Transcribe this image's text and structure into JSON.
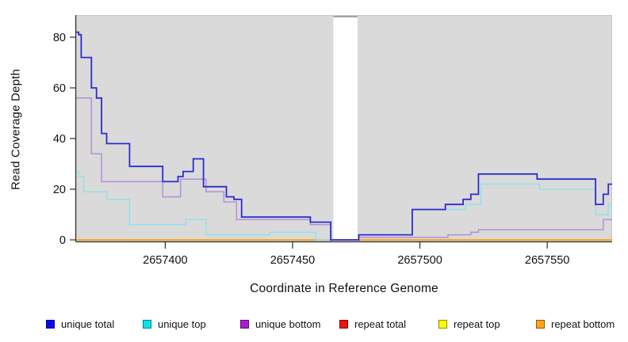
{
  "figure": {
    "x_axis_label": "Coordinate in Reference Genome",
    "y_axis_label": "Read Coverage Depth"
  },
  "legend": {
    "items": [
      {
        "label": "unique total",
        "color": "#0808EE"
      },
      {
        "label": "unique top",
        "color": "#00E6E6"
      },
      {
        "label": "unique bottom",
        "color": "#A21FD0"
      },
      {
        "label": "repeat total",
        "color": "#EE1111"
      },
      {
        "label": "repeat top",
        "color": "#FFFF00"
      },
      {
        "label": "repeat bottom",
        "color": "#FFA519"
      }
    ]
  },
  "chart_data": {
    "type": "line",
    "subtype": "step-coverage",
    "title": "",
    "xlabel": "Coordinate in Reference Genome",
    "ylabel": "Read Coverage Depth",
    "xlim": [
      2657365,
      2657575.5
    ],
    "ylim": [
      0,
      88
    ],
    "x_ticks": [
      2657400,
      2657450,
      2657500,
      2657550
    ],
    "y_ticks": [
      0,
      20,
      40,
      60,
      80
    ],
    "panel_background": "#DADADA",
    "panel_border": "#C6C6C6",
    "masked_region": {
      "x_start": 2657466,
      "x_end": 2657475.5,
      "fill": "#FFFFFF"
    },
    "grid": "off",
    "legend_position": "bottom",
    "series": [
      {
        "name": "repeat total",
        "line_color": "#E02020",
        "width": 1.2,
        "steps": [
          [
            2657365,
            0
          ]
        ]
      },
      {
        "name": "repeat top",
        "line_color": "#FFFF00",
        "width": 1.2,
        "steps": [
          [
            2657365,
            0
          ]
        ]
      },
      {
        "name": "repeat bottom",
        "line_color": "#FFA519",
        "width": 1.8,
        "steps": [
          [
            2657365,
            0
          ]
        ]
      },
      {
        "name": "unique top",
        "line_color": "#90E2E6",
        "width": 1.5,
        "steps": [
          [
            2657365,
            27
          ],
          [
            2657366,
            25
          ],
          [
            2657368,
            19
          ],
          [
            2657377,
            16
          ],
          [
            2657386,
            6
          ],
          [
            2657408,
            8
          ],
          [
            2657416,
            2
          ],
          [
            2657441,
            3
          ],
          [
            2657459,
            0
          ],
          [
            2657476,
            2
          ],
          [
            2657497,
            12
          ],
          [
            2657518,
            14
          ],
          [
            2657524,
            22
          ],
          [
            2657547,
            20
          ],
          [
            2657569,
            10
          ],
          [
            2657574,
            14
          ]
        ]
      },
      {
        "name": "unique bottom",
        "line_color": "#B48FDA",
        "width": 1.5,
        "steps": [
          [
            2657365,
            56
          ],
          [
            2657371,
            34
          ],
          [
            2657375,
            23
          ],
          [
            2657399,
            17
          ],
          [
            2657406,
            24
          ],
          [
            2657416,
            19
          ],
          [
            2657423,
            15
          ],
          [
            2657428,
            8
          ],
          [
            2657457,
            6
          ],
          [
            2657465,
            0
          ],
          [
            2657476,
            1
          ],
          [
            2657511,
            2
          ],
          [
            2657520,
            3
          ],
          [
            2657523,
            4
          ],
          [
            2657572,
            8
          ]
        ]
      },
      {
        "name": "unique total",
        "line_color": "#2C2CD0",
        "width": 1.8,
        "steps": [
          [
            2657365,
            82
          ],
          [
            2657366,
            81
          ],
          [
            2657367,
            72
          ],
          [
            2657371,
            60
          ],
          [
            2657373,
            56
          ],
          [
            2657375,
            42
          ],
          [
            2657377,
            38
          ],
          [
            2657386,
            29
          ],
          [
            2657399,
            23
          ],
          [
            2657405,
            25
          ],
          [
            2657407,
            27
          ],
          [
            2657411,
            32
          ],
          [
            2657415,
            21
          ],
          [
            2657424,
            17
          ],
          [
            2657427,
            16
          ],
          [
            2657430,
            9
          ],
          [
            2657457,
            7
          ],
          [
            2657465,
            0
          ],
          [
            2657476,
            2
          ],
          [
            2657497,
            12
          ],
          [
            2657510,
            14
          ],
          [
            2657517,
            16
          ],
          [
            2657520,
            18
          ],
          [
            2657523,
            26
          ],
          [
            2657546,
            24
          ],
          [
            2657569,
            14
          ],
          [
            2657572,
            18
          ],
          [
            2657574,
            22
          ]
        ]
      }
    ]
  }
}
